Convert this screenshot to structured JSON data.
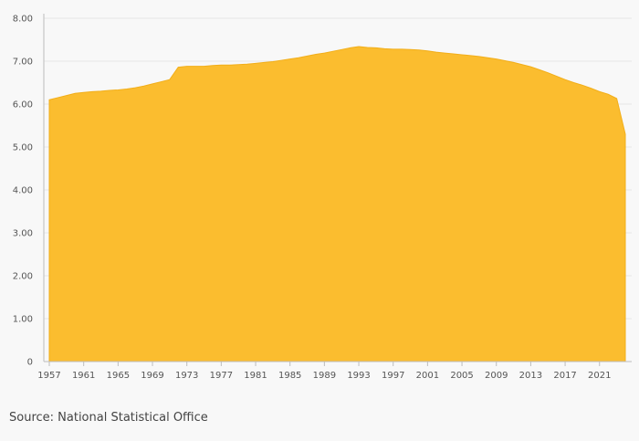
{
  "source_label": "Source: National Statistical Office",
  "colors": {
    "fill": "#fbbd2f",
    "stroke": "#f2ae19",
    "grid": "#e6e6e6"
  },
  "chart_data": {
    "type": "area",
    "title": "",
    "xlabel": "",
    "ylabel": "",
    "xlim": [
      1957,
      2024
    ],
    "ylim": [
      0,
      8
    ],
    "y_ticks": [
      0,
      1,
      2,
      3,
      4,
      5,
      6,
      7,
      8
    ],
    "y_tick_labels": [
      "0",
      "1.00",
      "2.00",
      "3.00",
      "4.00",
      "5.00",
      "6.00",
      "7.00",
      "8.00"
    ],
    "x_ticks": [
      1957,
      1961,
      1965,
      1969,
      1973,
      1977,
      1981,
      1985,
      1989,
      1993,
      1997,
      2001,
      2005,
      2009,
      2013,
      2017,
      2021
    ],
    "x_tick_labels": [
      "1957",
      "1961",
      "1965",
      "1969",
      "1973",
      "1977",
      "1981",
      "1985",
      "1989",
      "1993",
      "1997",
      "2001",
      "2005",
      "2009",
      "2013",
      "2017",
      "2021"
    ],
    "grid": true,
    "legend": "none",
    "x": [
      1957,
      1958,
      1959,
      1960,
      1961,
      1962,
      1963,
      1964,
      1965,
      1966,
      1967,
      1968,
      1969,
      1970,
      1971,
      1972,
      1973,
      1974,
      1975,
      1976,
      1977,
      1978,
      1979,
      1980,
      1981,
      1982,
      1983,
      1984,
      1985,
      1986,
      1987,
      1988,
      1989,
      1990,
      1991,
      1992,
      1993,
      1994,
      1995,
      1996,
      1997,
      1998,
      1999,
      2000,
      2001,
      2002,
      2003,
      2004,
      2005,
      2006,
      2007,
      2008,
      2009,
      2010,
      2011,
      2012,
      2013,
      2014,
      2015,
      2016,
      2017,
      2018,
      2019,
      2020,
      2021,
      2022,
      2023,
      2024
    ],
    "values": [
      6.1,
      6.15,
      6.2,
      6.25,
      6.27,
      6.29,
      6.3,
      6.32,
      6.33,
      6.35,
      6.38,
      6.42,
      6.47,
      6.52,
      6.57,
      6.86,
      6.88,
      6.88,
      6.88,
      6.9,
      6.91,
      6.91,
      6.92,
      6.93,
      6.95,
      6.97,
      6.99,
      7.02,
      7.05,
      7.08,
      7.12,
      7.16,
      7.19,
      7.23,
      7.27,
      7.31,
      7.34,
      7.32,
      7.31,
      7.29,
      7.28,
      7.28,
      7.27,
      7.26,
      7.24,
      7.21,
      7.19,
      7.17,
      7.15,
      7.13,
      7.11,
      7.08,
      7.05,
      7.01,
      6.97,
      6.92,
      6.87,
      6.8,
      6.73,
      6.65,
      6.57,
      6.5,
      6.44,
      6.37,
      6.29,
      6.23,
      6.13,
      5.3
    ]
  }
}
